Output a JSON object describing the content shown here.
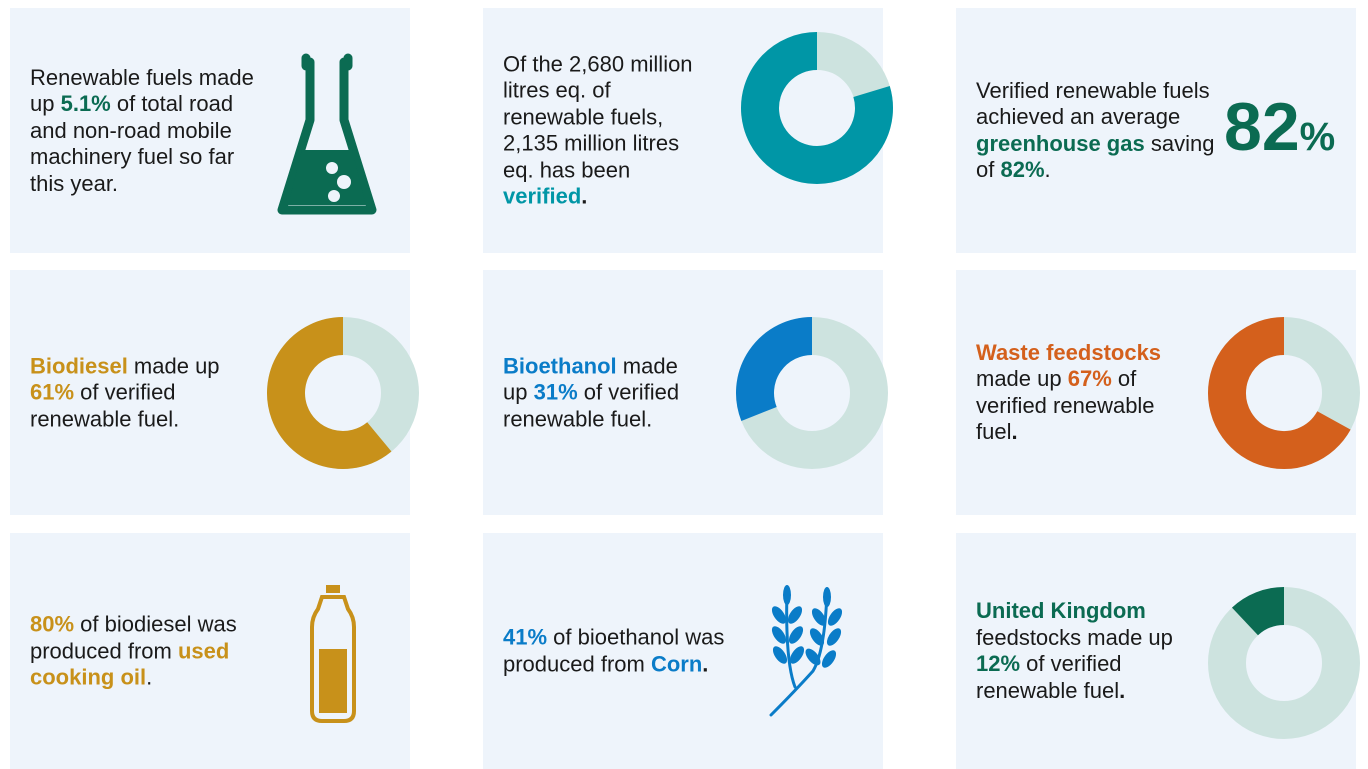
{
  "cards": [
    {
      "text": [
        {
          "text": "Renewable fuels made up "
        },
        {
          "text": "5.1%",
          "color": "#0b6b52"
        },
        {
          "text": " of total road and non-road mobile machinery fuel so far this year."
        }
      ]
    },
    {
      "text": [
        {
          "text": "Of the 2,680 million litres eq. of renewable fuels, 2,135 million litres eq. has been "
        },
        {
          "text": "verified",
          "color": "#0096a6"
        },
        {
          "text": ".",
          "bold": true
        }
      ],
      "donut": {
        "value": 2135,
        "total": 2680,
        "color": "#0096a6",
        "track": "#cde3df"
      }
    },
    {
      "text": [
        {
          "text": "Verified renewable fuels achieved an average "
        },
        {
          "text": "greenhouse gas",
          "color": "#0b6b52"
        },
        {
          "text": " saving of "
        },
        {
          "text": "82%",
          "color": "#0b6b52"
        },
        {
          "text": "."
        }
      ],
      "big": {
        "number": "82",
        "unit": "%",
        "color": "#0b6b52"
      }
    },
    {
      "text": [
        {
          "text": "Biodiesel",
          "color": "#c8911a"
        },
        {
          "text": " made up "
        },
        {
          "text": "61%",
          "color": "#c8911a"
        },
        {
          "text": " of verified renewable fuel."
        }
      ],
      "donut": {
        "value": 61,
        "color": "#c8911a",
        "track": "#cde3df"
      }
    },
    {
      "text": [
        {
          "text": "Bioethanol",
          "color": "#0a7cc8"
        },
        {
          "text": " made up "
        },
        {
          "text": "31%",
          "color": "#0a7cc8"
        },
        {
          "text": " of verified renewable fuel."
        }
      ],
      "donut": {
        "value": 31,
        "color": "#0a7cc8",
        "track": "#cde3df"
      }
    },
    {
      "text": [
        {
          "text": "Waste feedstocks",
          "color": "#d4601c"
        },
        {
          "text": " made up  "
        },
        {
          "text": "67%",
          "color": "#d4601c"
        },
        {
          "text": " of verified renewable fuel"
        },
        {
          "text": ".",
          "bold": true
        }
      ],
      "donut": {
        "value": 67,
        "color": "#d4601c",
        "track": "#cde3df"
      }
    },
    {
      "text": [
        {
          "text": "80%",
          "color": "#c8911a"
        },
        {
          "text": " of biodiesel was produced from "
        },
        {
          "text": "used cooking oil",
          "color": "#c8911a"
        },
        {
          "text": "."
        }
      ]
    },
    {
      "text": [
        {
          "text": "41%",
          "color": "#0a7cc8"
        },
        {
          "text": " of bioethanol was produced from "
        },
        {
          "text": "Corn",
          "color": "#0a7cc8"
        },
        {
          "text": ".",
          "bold": true
        }
      ]
    },
    {
      "text": [
        {
          "text": "United Kingdom",
          "color": "#0b6b52"
        },
        {
          "text": " feedstocks made up "
        },
        {
          "text": "12%",
          "color": "#0b6b52"
        },
        {
          "text": " of verified renewable fuel"
        },
        {
          "text": ".",
          "bold": true
        }
      ],
      "donut": {
        "value": 12,
        "color": "#0b6b52",
        "track": "#cde3df"
      }
    }
  ]
}
